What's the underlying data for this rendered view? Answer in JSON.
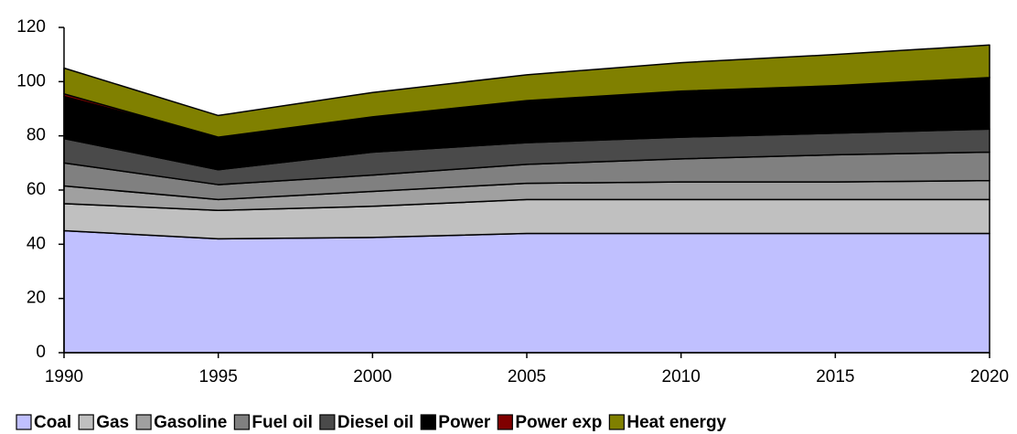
{
  "chart_data": {
    "type": "stacked_area",
    "x": [
      1990,
      1995,
      2000,
      2005,
      2010,
      2015,
      2020
    ],
    "xlim": [
      1990,
      2020
    ],
    "xticks": [
      1990,
      1995,
      2000,
      2005,
      2010,
      2015,
      2020
    ],
    "ylim": [
      0,
      120
    ],
    "yticks": [
      0,
      20,
      40,
      60,
      80,
      100,
      120
    ],
    "grid": false,
    "legend": "bottom",
    "series": [
      {
        "name": "Coal",
        "color": "#c0c0ff",
        "values": [
          45,
          42,
          42.5,
          44,
          44,
          44,
          44
        ]
      },
      {
        "name": "Gas",
        "color": "#c0c0c0",
        "values": [
          10,
          10.5,
          11.5,
          12.5,
          12.5,
          12.5,
          12.5
        ]
      },
      {
        "name": "Gasoline",
        "color": "#a0a0a0",
        "values": [
          6.5,
          4,
          5.5,
          6,
          6.5,
          6.5,
          7
        ]
      },
      {
        "name": "Fuel oil",
        "color": "#808080",
        "values": [
          8.5,
          5.5,
          6,
          7,
          8.5,
          10,
          10.5
        ]
      },
      {
        "name": "Diesel oil",
        "color": "#4a4a4a",
        "values": [
          9,
          5.5,
          8.5,
          8,
          8,
          8,
          8.5
        ]
      },
      {
        "name": "Power",
        "color": "#000000",
        "values": [
          15.5,
          12,
          13,
          15.5,
          17,
          17.5,
          19
        ]
      },
      {
        "name": "Power exp",
        "color": "#800000",
        "values": [
          1,
          0,
          0,
          0,
          0,
          0,
          0
        ]
      },
      {
        "name": "Heat energy",
        "color": "#808000",
        "values": [
          9.5,
          8,
          9,
          9.5,
          10.5,
          11.5,
          12
        ]
      }
    ]
  }
}
